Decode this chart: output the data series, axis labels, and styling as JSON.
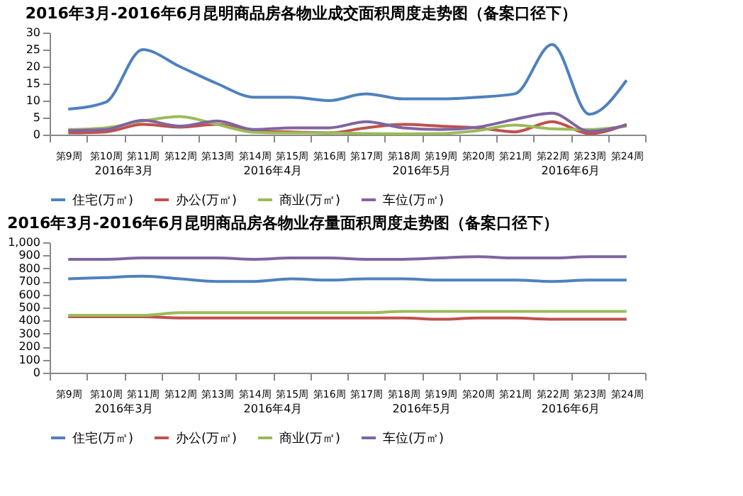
{
  "chart_data": [
    {
      "type": "line",
      "title": "2016年3月-2016年6月昆明商品房各物业成交面积周度走势图（备案口径下）",
      "categories": [
        "第9周",
        "第10周",
        "第11周",
        "第12周",
        "第13周",
        "第14周",
        "第15周",
        "第16周",
        "第17周",
        "第18周",
        "第19周",
        "第20周",
        "第21周",
        "第22周",
        "第23周",
        "第24周"
      ],
      "series": [
        {
          "name": "住宅(万㎡)",
          "color": "#4f81bd",
          "values": [
            7.5,
            9.5,
            25,
            20,
            15,
            11,
            11,
            10,
            12,
            10.5,
            10.5,
            11,
            12,
            26.5,
            6,
            16
          ]
        },
        {
          "name": "办公(万㎡)",
          "color": "#c0504d",
          "values": [
            0.5,
            0.8,
            3,
            2.2,
            3,
            1,
            0.8,
            0.5,
            2,
            3,
            2.5,
            2,
            0.8,
            3.8,
            0.3,
            3
          ]
        },
        {
          "name": "商业(万㎡)",
          "color": "#9bbb59",
          "values": [
            1.5,
            2,
            4,
            5.3,
            3,
            0.7,
            0.5,
            0.5,
            0.3,
            0.2,
            0.3,
            1.2,
            2.8,
            1.7,
            1.5,
            2.5
          ]
        },
        {
          "name": "车位(万㎡)",
          "color": "#8064a2",
          "values": [
            1.2,
            1.5,
            4.2,
            2.5,
            4,
            1.5,
            2,
            2,
            3.8,
            2,
            1.5,
            2.2,
            4.5,
            6.3,
            1,
            2.8
          ]
        }
      ],
      "ylim": [
        0,
        30
      ],
      "yticks": [
        0,
        5,
        10,
        15,
        20,
        25,
        30
      ],
      "grid": false,
      "legend": "bottom",
      "marker": "none",
      "annotations": [
        "2016年3月",
        "2016年4月",
        "2016年5月",
        "2016年6月"
      ]
    },
    {
      "type": "line",
      "title": "2016年3月-2016年6月昆明商品房各物业存量面积周度走势图（备案口径下）",
      "categories": [
        "第9周",
        "第10周",
        "第11周",
        "第12周",
        "第13周",
        "第14周",
        "第15周",
        "第16周",
        "第17周",
        "第18周",
        "第19周",
        "第20周",
        "第21周",
        "第22周",
        "第23周",
        "第24周"
      ],
      "series": [
        {
          "name": "住宅(万㎡)",
          "color": "#4f81bd",
          "values": [
            720,
            730,
            740,
            720,
            700,
            700,
            720,
            710,
            720,
            720,
            710,
            710,
            710,
            700,
            710,
            710
          ]
        },
        {
          "name": "办公(万㎡)",
          "color": "#c0504d",
          "values": [
            430,
            430,
            430,
            420,
            420,
            420,
            420,
            420,
            420,
            420,
            410,
            420,
            420,
            410,
            410,
            410
          ]
        },
        {
          "name": "商业(万㎡)",
          "color": "#9bbb59",
          "values": [
            440,
            440,
            440,
            460,
            460,
            460,
            460,
            460,
            460,
            470,
            470,
            470,
            470,
            470,
            470,
            470
          ]
        },
        {
          "name": "车位(万㎡)",
          "color": "#8064a2",
          "values": [
            870,
            870,
            880,
            880,
            880,
            870,
            880,
            880,
            870,
            870,
            880,
            890,
            880,
            880,
            890,
            890
          ]
        }
      ],
      "ylim": [
        0,
        1000
      ],
      "yticks": [
        0,
        100,
        200,
        300,
        400,
        500,
        600,
        700,
        800,
        900,
        {
          "value": 1000,
          "label": "1,000"
        }
      ],
      "grid": false,
      "legend": "bottom",
      "marker": "none",
      "annotations": [
        "2016年3月",
        "2016年4月",
        "2016年5月",
        "2016年6月"
      ]
    }
  ]
}
